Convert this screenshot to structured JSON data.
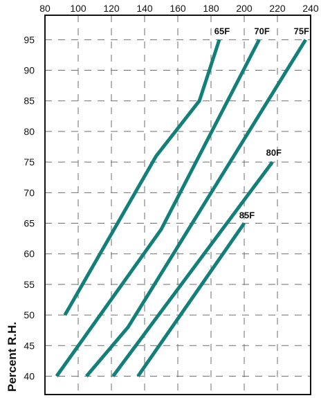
{
  "chart_data": {
    "type": "line",
    "title": "",
    "xlabel": "",
    "ylabel": "Percent R.H.",
    "xlim": [
      80,
      240
    ],
    "ylim": [
      37,
      99
    ],
    "x_ticks": [
      80,
      100,
      120,
      140,
      160,
      180,
      200,
      220,
      240
    ],
    "y_ticks": [
      40,
      45,
      50,
      55,
      60,
      65,
      70,
      75,
      80,
      85,
      90,
      95
    ],
    "x_axis_position": "top",
    "grid": true,
    "series_color": "#127F78",
    "series": [
      {
        "name": "65F",
        "x": [
          92,
          147,
          173,
          185
        ],
        "y": [
          50,
          76,
          85,
          95
        ]
      },
      {
        "name": "70F",
        "x": [
          87,
          150,
          209
        ],
        "y": [
          40,
          64,
          95
        ]
      },
      {
        "name": "75F",
        "x": [
          105,
          130,
          237
        ],
        "y": [
          40,
          48,
          95
        ]
      },
      {
        "name": "80F",
        "x": [
          121,
          217
        ],
        "y": [
          40,
          75
        ]
      },
      {
        "name": "85F",
        "x": [
          136,
          200
        ],
        "y": [
          40,
          65
        ]
      }
    ]
  }
}
